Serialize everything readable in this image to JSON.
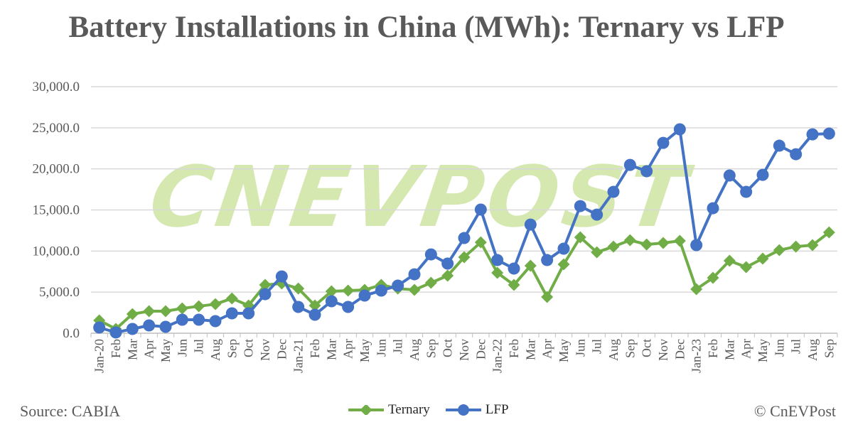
{
  "chart_data": {
    "type": "line",
    "title": "Battery Installations in China (MWh): Ternary vs LFP",
    "xlabel": "",
    "ylabel": "",
    "ylim": [
      0,
      30000
    ],
    "yticks": [
      "0.0",
      "5,000.0",
      "10,000.0",
      "15,000.0",
      "20,000.0",
      "25,000.0",
      "30,000.0"
    ],
    "grid": true,
    "legend_position": "bottom",
    "categories": [
      "Jan-20",
      "Feb",
      "Mar",
      "Apr",
      "May",
      "Jun",
      "Jul",
      "Aug",
      "Sep",
      "Oct",
      "Nov",
      "Dec",
      "Jan-21",
      "Feb",
      "Mar",
      "Apr",
      "May",
      "Jun",
      "Jul",
      "Aug",
      "Sep",
      "Oct",
      "Nov",
      "Dec",
      "Jan-22",
      "Feb",
      "Mar",
      "Apr",
      "May",
      "Jun",
      "Jul",
      "Aug",
      "Sep",
      "Oct",
      "Nov",
      "Dec",
      "Jan-23",
      "Feb",
      "Mar",
      "Apr",
      "May",
      "Jun",
      "Jul",
      "Aug",
      "Sep"
    ],
    "series": [
      {
        "name": "Ternary",
        "color": "#70ad47",
        "marker": "diamond",
        "values": [
          1560,
          520,
          2330,
          2680,
          2680,
          3020,
          3280,
          3540,
          4230,
          3370,
          5880,
          6050,
          5440,
          3370,
          5100,
          5190,
          5270,
          5880,
          5440,
          5270,
          6140,
          7000,
          9250,
          11060,
          7350,
          5880,
          8210,
          4410,
          8380,
          11670,
          9850,
          10540,
          11320,
          10800,
          10980,
          11240,
          5360,
          6740,
          8820,
          8040,
          9080,
          10110,
          10540,
          10720,
          12270
        ]
      },
      {
        "name": "LFP",
        "color": "#4472c4",
        "marker": "circle",
        "values": [
          690,
          90,
          520,
          950,
          780,
          1640,
          1640,
          1470,
          2420,
          2420,
          4750,
          6910,
          3200,
          2250,
          3890,
          3200,
          4580,
          5190,
          5790,
          7170,
          9590,
          8470,
          11580,
          15040,
          8900,
          7870,
          13220,
          8900,
          10290,
          15470,
          14430,
          17200,
          20480,
          19710,
          23160,
          24810,
          10720,
          15210,
          19190,
          17200,
          19270,
          22820,
          21780,
          24200,
          24290
        ]
      }
    ]
  },
  "footer": {
    "source": "Source: CABIA",
    "credit": "© CnEVPost"
  },
  "watermark": "CNEVPOST"
}
